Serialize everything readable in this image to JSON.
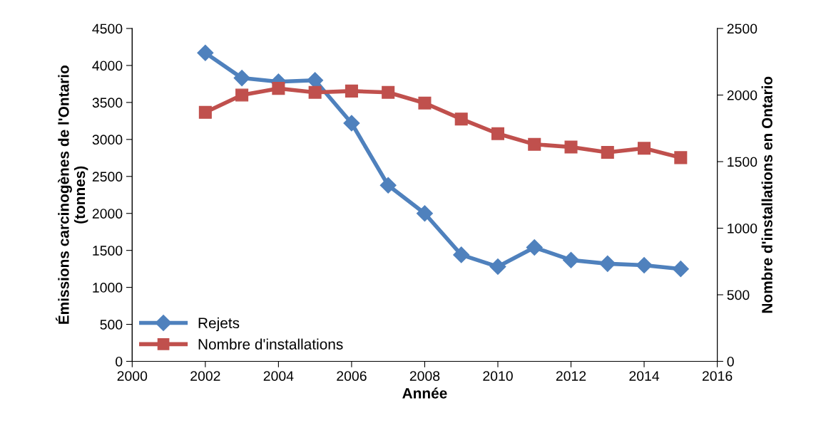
{
  "chart_data": {
    "type": "line",
    "xlabel": "Année",
    "ylabel": "Émissions carcinogènes de l'Ontario\n(tonnes)",
    "y2label": "Nombre d'installations en Ontario",
    "x": [
      2002,
      2003,
      2004,
      2005,
      2006,
      2007,
      2008,
      2009,
      2010,
      2011,
      2012,
      2013,
      2014,
      2015
    ],
    "series": [
      {
        "name": "Rejets",
        "color": "#4f81bd",
        "marker": "diamond",
        "values": [
          4170,
          3830,
          3780,
          3800,
          3220,
          2380,
          2000,
          1440,
          1280,
          1540,
          1370,
          1320,
          1300,
          1250
        ]
      },
      {
        "name": "Nombre d'installations",
        "color": "#c0504d",
        "marker": "square",
        "axis": "y2",
        "values": [
          1870,
          2000,
          2050,
          2020,
          2030,
          2020,
          1940,
          1820,
          1710,
          1630,
          1610,
          1570,
          1600,
          1530
        ]
      }
    ],
    "xlim": [
      2000,
      2016
    ],
    "xticks": [
      2000,
      2002,
      2004,
      2006,
      2008,
      2010,
      2012,
      2014,
      2016
    ],
    "ylim": [
      0,
      4500
    ],
    "yticks": [
      0,
      500,
      1000,
      1500,
      2000,
      2500,
      3000,
      3500,
      4000,
      4500
    ],
    "y2lim": [
      0,
      2500
    ],
    "y2ticks": [
      0,
      500,
      1000,
      1500,
      2000,
      2500
    ],
    "grid": false,
    "legend": "bottom left",
    "line_style": "solid"
  }
}
